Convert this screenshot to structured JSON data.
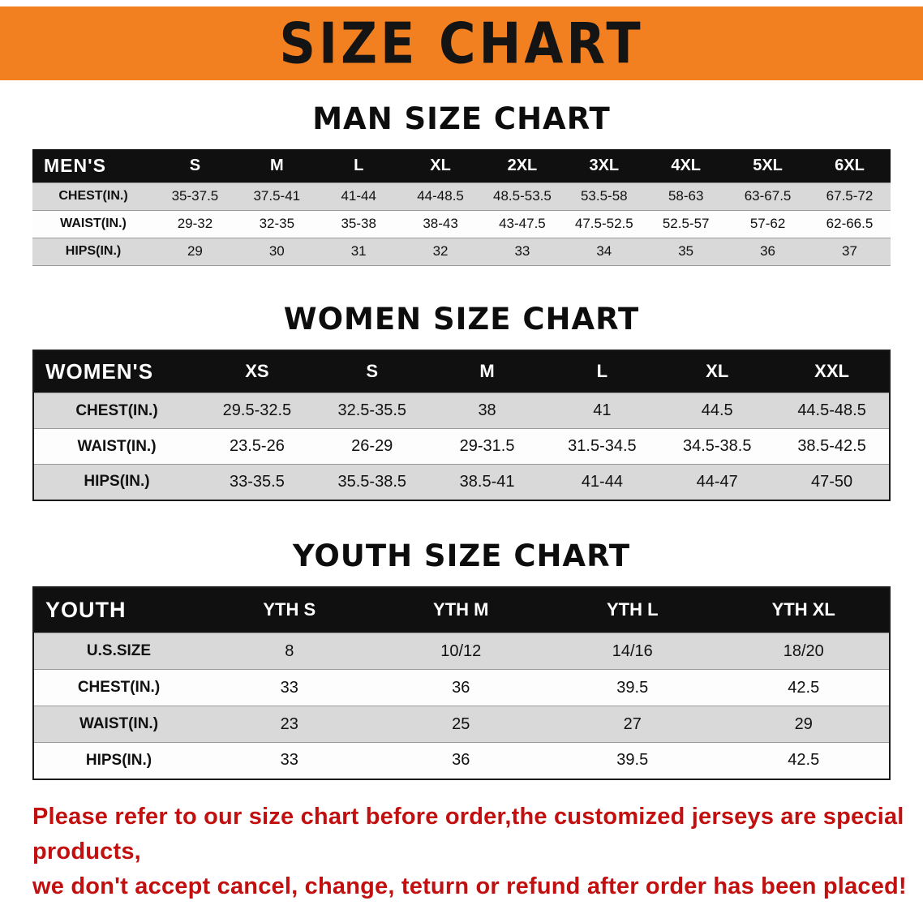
{
  "banner": {
    "title": "SIZE CHART",
    "background_color": "#F28020",
    "text_color": "#141414"
  },
  "sections": [
    {
      "title": "MAN SIZE CHART",
      "table": {
        "corner_label": "MEN'S",
        "columns": [
          "S",
          "M",
          "L",
          "XL",
          "2XL",
          "3XL",
          "4XL",
          "5XL",
          "6XL"
        ],
        "rows": [
          {
            "label": "CHEST(IN.)",
            "values": [
              "35-37.5",
              "37.5-41",
              "41-44",
              "44-48.5",
              "48.5-53.5",
              "53.5-58",
              "58-63",
              "63-67.5",
              "67.5-72"
            ]
          },
          {
            "label": "WAIST(IN.)",
            "values": [
              "29-32",
              "32-35",
              "35-38",
              "38-43",
              "43-47.5",
              "47.5-52.5",
              "52.5-57",
              "57-62",
              "62-66.5"
            ]
          },
          {
            "label": "HIPS(IN.)",
            "values": [
              "29",
              "30",
              "31",
              "32",
              "33",
              "34",
              "35",
              "36",
              "37"
            ]
          }
        ]
      }
    },
    {
      "title": "WOMEN SIZE CHART",
      "table": {
        "corner_label": "WOMEN'S",
        "columns": [
          "XS",
          "S",
          "M",
          "L",
          "XL",
          "XXL"
        ],
        "rows": [
          {
            "label": "CHEST(IN.)",
            "values": [
              "29.5-32.5",
              "32.5-35.5",
              "38",
              "41",
              "44.5",
              "44.5-48.5"
            ]
          },
          {
            "label": "WAIST(IN.)",
            "values": [
              "23.5-26",
              "26-29",
              "29-31.5",
              "31.5-34.5",
              "34.5-38.5",
              "38.5-42.5"
            ]
          },
          {
            "label": "HIPS(IN.)",
            "values": [
              "33-35.5",
              "35.5-38.5",
              "38.5-41",
              "41-44",
              "44-47",
              "47-50"
            ]
          }
        ]
      }
    },
    {
      "title": "YOUTH SIZE CHART",
      "table": {
        "corner_label": "YOUTH",
        "columns": [
          "YTH S",
          "YTH M",
          "YTH L",
          "YTH XL"
        ],
        "rows": [
          {
            "label": "U.S.SIZE",
            "values": [
              "8",
              "10/12",
              "14/16",
              "18/20"
            ]
          },
          {
            "label": "CHEST(IN.)",
            "values": [
              "33",
              "36",
              "39.5",
              "42.5"
            ]
          },
          {
            "label": "WAIST(IN.)",
            "values": [
              "23",
              "25",
              "27",
              "29"
            ]
          },
          {
            "label": "HIPS(IN.)",
            "values": [
              "33",
              "36",
              "39.5",
              "42.5"
            ]
          }
        ]
      }
    }
  ],
  "table_style": {
    "header_bg": "#101010",
    "header_text": "#FFFFFF",
    "shaded_row_bg": "#D9D9D9"
  },
  "disclaimer": {
    "line1": "Please refer to our size chart before order,the customized jerseys are special products,",
    "line2": "we don't accept cancel, change, teturn or refund after order has been placed!",
    "text_color": "#C21010"
  }
}
